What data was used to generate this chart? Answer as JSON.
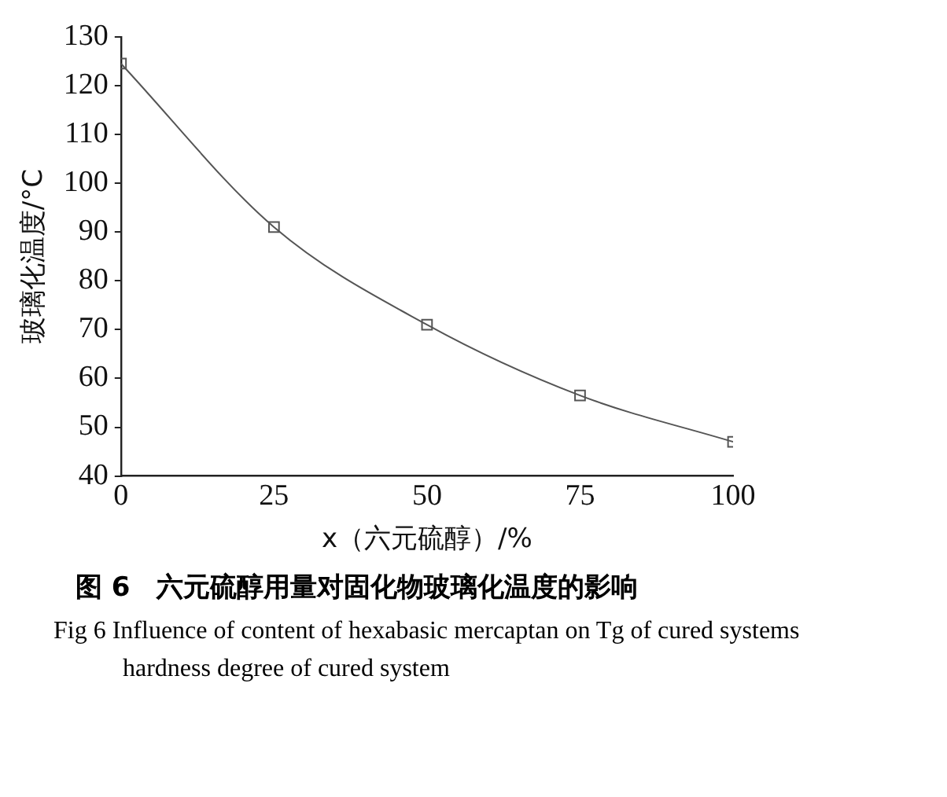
{
  "chart_data": {
    "type": "line",
    "xlabel": "x（六元硫醇）/%",
    "ylabel": "玻璃化温度/°C",
    "x": [
      0,
      25,
      50,
      75,
      100
    ],
    "series": [
      {
        "color": "#555555",
        "values": [
          124.5,
          91,
          71,
          56.5,
          47
        ]
      }
    ],
    "xlim": [
      0,
      100
    ],
    "xticks": [
      0,
      25,
      50,
      75,
      100
    ],
    "ylim": [
      40,
      130
    ],
    "yticks": [
      40,
      50,
      60,
      70,
      80,
      90,
      100,
      110,
      120,
      130
    ],
    "grid": false,
    "legend": false,
    "marker": "square",
    "line_style": "solid",
    "annotations": [
      "图 6　六元硫醇用量对固化物玻璃化温度的影响",
      "Fig 6 Influence of content of hexabasic mercaptan on Tg of cured systems",
      "hardness degree of cured system"
    ]
  }
}
